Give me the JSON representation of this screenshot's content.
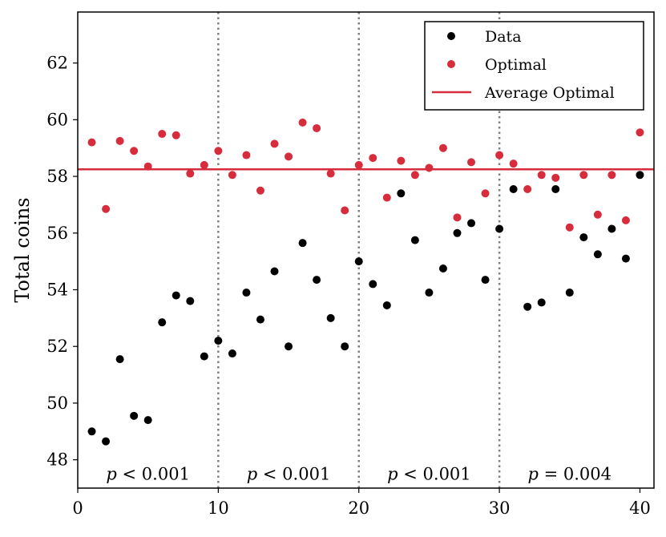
{
  "chart_data": {
    "type": "scatter",
    "title": "",
    "xlabel": "",
    "ylabel": "Total coins",
    "xlim": [
      0,
      41
    ],
    "ylim": [
      47,
      63.8
    ],
    "xticks": [
      "0",
      "10",
      "20",
      "30",
      "40"
    ],
    "yticks": [
      "48",
      "50",
      "52",
      "54",
      "56",
      "58",
      "60",
      "62"
    ],
    "grid": false,
    "legend_position": "top-right",
    "series": [
      {
        "name": "Data",
        "color": "#000000",
        "x": [
          1,
          2,
          3,
          4,
          5,
          6,
          7,
          8,
          9,
          10,
          11,
          12,
          13,
          14,
          15,
          16,
          17,
          18,
          19,
          20,
          21,
          22,
          23,
          24,
          25,
          26,
          27,
          28,
          29,
          30,
          31,
          32,
          33,
          34,
          35,
          36,
          37,
          38,
          39,
          40
        ],
        "y": [
          49.0,
          48.65,
          51.55,
          49.55,
          49.4,
          52.85,
          53.8,
          53.6,
          51.65,
          52.2,
          51.75,
          53.9,
          52.95,
          54.65,
          52.0,
          55.65,
          54.35,
          53.0,
          52.0,
          55.0,
          54.2,
          53.45,
          57.4,
          55.75,
          53.9,
          54.75,
          56.0,
          56.35,
          54.35,
          56.15,
          57.55,
          53.4,
          53.55,
          57.55,
          53.9,
          55.85,
          55.25,
          56.15,
          55.1,
          58.05
        ]
      },
      {
        "name": "Optimal",
        "color": "#d62c3c",
        "x": [
          1,
          2,
          3,
          4,
          5,
          6,
          7,
          8,
          9,
          10,
          11,
          12,
          13,
          14,
          15,
          16,
          17,
          18,
          19,
          20,
          21,
          22,
          23,
          24,
          25,
          26,
          27,
          28,
          29,
          30,
          31,
          32,
          33,
          34,
          35,
          36,
          37,
          38,
          39,
          40
        ],
        "y": [
          59.2,
          56.85,
          59.25,
          58.9,
          58.35,
          59.5,
          59.45,
          58.1,
          58.4,
          58.9,
          58.05,
          58.75,
          57.5,
          59.15,
          58.7,
          59.9,
          59.7,
          58.1,
          56.8,
          58.4,
          58.65,
          57.25,
          58.55,
          58.05,
          58.3,
          59.0,
          56.55,
          58.5,
          57.4,
          58.75,
          58.45,
          57.55,
          58.05,
          57.95,
          56.2,
          58.05,
          56.65,
          58.05,
          56.45,
          59.55
        ]
      }
    ],
    "reference_line": {
      "name": "Average Optimal",
      "y": 58.25,
      "color": "#d62c3c"
    },
    "dividers": {
      "x": [
        10,
        20,
        30
      ],
      "color": "#7f7f7f"
    },
    "annotations": [
      {
        "x": 5,
        "prefix": "p",
        "text": " < 0.001"
      },
      {
        "x": 15,
        "prefix": "p",
        "text": " < 0.001"
      },
      {
        "x": 25,
        "prefix": "p",
        "text": " < 0.001"
      },
      {
        "x": 35,
        "prefix": "p",
        "text": " = 0.004"
      }
    ],
    "legend": [
      "Data",
      "Optimal",
      "Average Optimal"
    ]
  }
}
